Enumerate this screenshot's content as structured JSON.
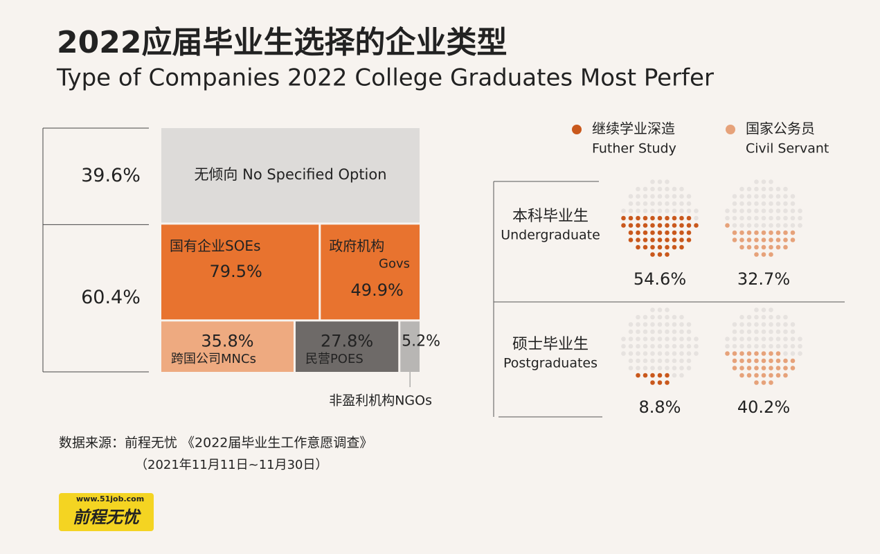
{
  "title": "2022应届毕业生选择的企业类型",
  "subtitle": "Type of Companies 2022 College Graduates Most Perfer",
  "chart_data": [
    {
      "type": "mosaic",
      "categories": [
        "无倾向 No Specified Option",
        null
      ],
      "values": [
        39.6,
        60.4
      ],
      "value_labels": [
        "39.6%",
        "60.4%"
      ],
      "color": "#dddbd9",
      "segments": [
        {
          "name": "国有企业SOEs",
          "value": 79.5,
          "value_label": "79.5%",
          "color": "#e8732f"
        },
        {
          "name": "政府机构",
          "name_en": "Govs",
          "value": 49.9,
          "value_label": "49.9%",
          "color": "#e8732f"
        },
        {
          "name": "跨国公司MNCs",
          "value": 35.8,
          "value_label": "35.8%",
          "color": "#eeaa80"
        },
        {
          "name": "民营POES",
          "value": 27.8,
          "value_label": "27.8%",
          "color": "#6e6a68"
        },
        {
          "name": "非盈利机构NGOs",
          "value": 5.2,
          "value_label": "5.2%",
          "color": "#b8b6b4"
        }
      ]
    },
    {
      "type": "dots",
      "categories": [
        "本科毕业生",
        "硕士毕业生"
      ],
      "categories_en": [
        "Undergraduate",
        "Postgraduates"
      ],
      "series": [
        {
          "name": "继续学业深造",
          "name_en": "Futher Study",
          "color": "#c9581c",
          "values": [
            54.6,
            8.8
          ],
          "value_labels": [
            "54.6%",
            "8.8%"
          ]
        },
        {
          "name": "国家公务员",
          "name_en": "Civil Servant",
          "color": "#e6a27a",
          "values": [
            32.7,
            40.2
          ],
          "value_labels": [
            "32.7%",
            "40.2%"
          ]
        }
      ]
    }
  ],
  "source": {
    "line1": "数据来源：前程无忧 《2022届毕业生工作意愿调查》",
    "line2": "（2021年11月11日~11月30日）"
  },
  "logo": {
    "url": "www.51job.com",
    "name": "前程无忧"
  }
}
